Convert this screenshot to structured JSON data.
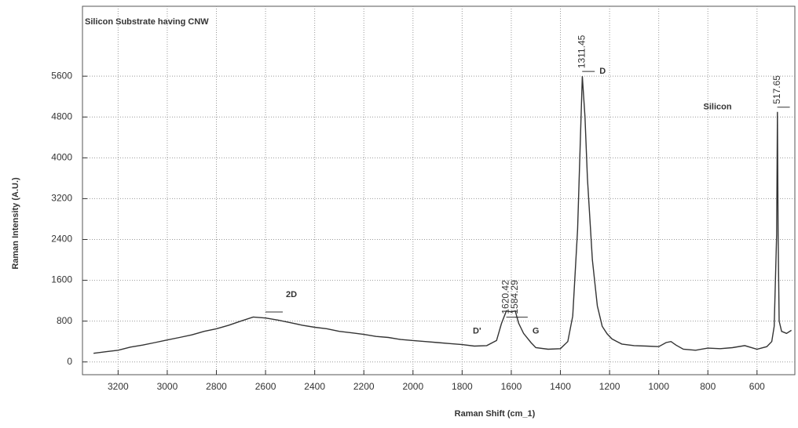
{
  "chart_data": {
    "type": "line",
    "title": "Silicon Substrate having CNW",
    "xlabel": "Raman Shift (cm_1)",
    "ylabel": "Raman Intensity (A.U.)",
    "color": "#333333",
    "x": [
      3300,
      3250,
      3200,
      3150,
      3100,
      3050,
      3000,
      2950,
      2900,
      2850,
      2800,
      2750,
      2700,
      2650,
      2600,
      2550,
      2500,
      2450,
      2400,
      2350,
      2300,
      2250,
      2200,
      2150,
      2100,
      2050,
      2000,
      1950,
      1900,
      1850,
      1800,
      1750,
      1700,
      1660,
      1640,
      1620,
      1600,
      1584,
      1570,
      1550,
      1520,
      1500,
      1450,
      1400,
      1370,
      1350,
      1330,
      1320,
      1311,
      1300,
      1290,
      1270,
      1250,
      1230,
      1210,
      1190,
      1170,
      1150,
      1100,
      1050,
      1000,
      970,
      950,
      930,
      900,
      850,
      800,
      750,
      700,
      650,
      600,
      560,
      540,
      530,
      520,
      517,
      514,
      510,
      500,
      480,
      460
    ],
    "values": [
      170,
      200,
      230,
      290,
      330,
      380,
      430,
      480,
      530,
      600,
      650,
      720,
      800,
      880,
      860,
      820,
      770,
      720,
      680,
      650,
      600,
      570,
      540,
      500,
      480,
      440,
      420,
      400,
      380,
      360,
      340,
      310,
      320,
      420,
      750,
      1000,
      980,
      1000,
      760,
      560,
      380,
      280,
      250,
      260,
      400,
      900,
      2600,
      4200,
      5600,
      4800,
      3600,
      2000,
      1100,
      700,
      550,
      450,
      400,
      350,
      320,
      310,
      300,
      380,
      400,
      330,
      250,
      230,
      270,
      260,
      280,
      320,
      250,
      300,
      400,
      700,
      2500,
      4900,
      2500,
      800,
      600,
      560,
      620
    ],
    "xlim": [
      3345,
      446
    ],
    "xticks": [
      3200,
      3000,
      2800,
      2600,
      2400,
      2200,
      2000,
      1800,
      1600,
      1400,
      1200,
      1000,
      800,
      600
    ],
    "ylim": [
      -250,
      6970
    ],
    "yticks": [
      0,
      800,
      1600,
      2400,
      3200,
      4000,
      4800,
      5600
    ],
    "grid": true,
    "peaks": [
      {
        "x": 1311.45,
        "name": "D"
      },
      {
        "x": 517.65,
        "name": "Silicon"
      },
      {
        "x": 1620.42,
        "name": "D'"
      },
      {
        "x": 1584.29,
        "name": "G"
      }
    ],
    "annotations": [
      "2D"
    ]
  }
}
